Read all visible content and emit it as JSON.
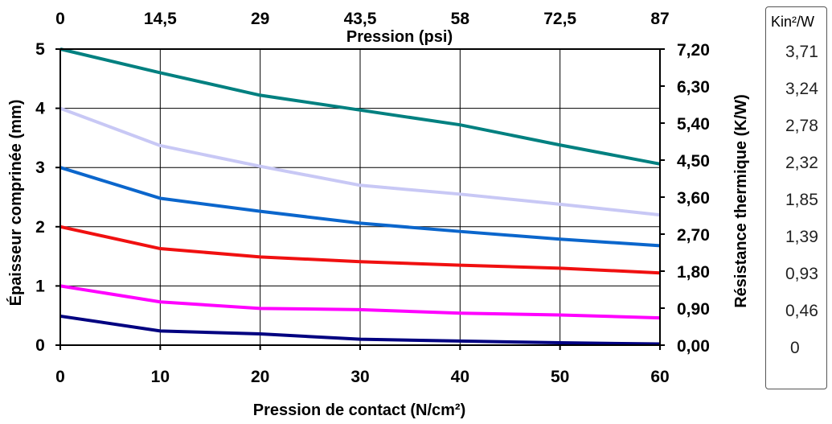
{
  "chart_data": {
    "type": "line",
    "xlabel": "Pression de contact  (N/cm²)",
    "x": [
      0,
      10,
      20,
      30,
      40,
      50,
      60
    ],
    "xlim": [
      0,
      60
    ],
    "ylabel": "Épaisseur comprinée (mm)",
    "ylim": [
      0,
      5
    ],
    "y_ticks": [
      "0",
      "1",
      "2",
      "3",
      "4",
      "5"
    ],
    "top_axis_label": "Pression (psi)",
    "top_ticks": [
      "0",
      "14,5",
      "29",
      "43,5",
      "58",
      "72,5",
      "87"
    ],
    "right_axis_label": "Résistance thermique (K/W)",
    "right_ticks": [
      "0,00",
      "0,90",
      "1,80",
      "2,70",
      "3,60",
      "4,50",
      "5,40",
      "6,30",
      "7,20"
    ],
    "grid": true,
    "series": [
      {
        "color": "#008080",
        "values": [
          5.0,
          4.6,
          4.22,
          3.97,
          3.72,
          3.38,
          3.06
        ]
      },
      {
        "color": "#c8c8f5",
        "values": [
          4.0,
          3.37,
          3.02,
          2.7,
          2.55,
          2.38,
          2.2
        ]
      },
      {
        "color": "#0b66cc",
        "values": [
          3.0,
          2.48,
          2.26,
          2.06,
          1.92,
          1.79,
          1.68
        ]
      },
      {
        "color": "#f01010",
        "values": [
          2.0,
          1.63,
          1.49,
          1.41,
          1.35,
          1.3,
          1.22
        ]
      },
      {
        "color": "#ff00ff",
        "values": [
          1.0,
          0.73,
          0.62,
          0.6,
          0.54,
          0.51,
          0.46
        ]
      },
      {
        "color": "#000080",
        "values": [
          0.49,
          0.24,
          0.19,
          0.1,
          0.07,
          0.04,
          0.02
        ]
      }
    ]
  },
  "unit_box": {
    "title": "Kin²/W",
    "values": [
      "3,71",
      "3,24",
      "2,78",
      "2,32",
      "1,85",
      "1,39",
      "0,93",
      "0,46",
      "0"
    ]
  }
}
